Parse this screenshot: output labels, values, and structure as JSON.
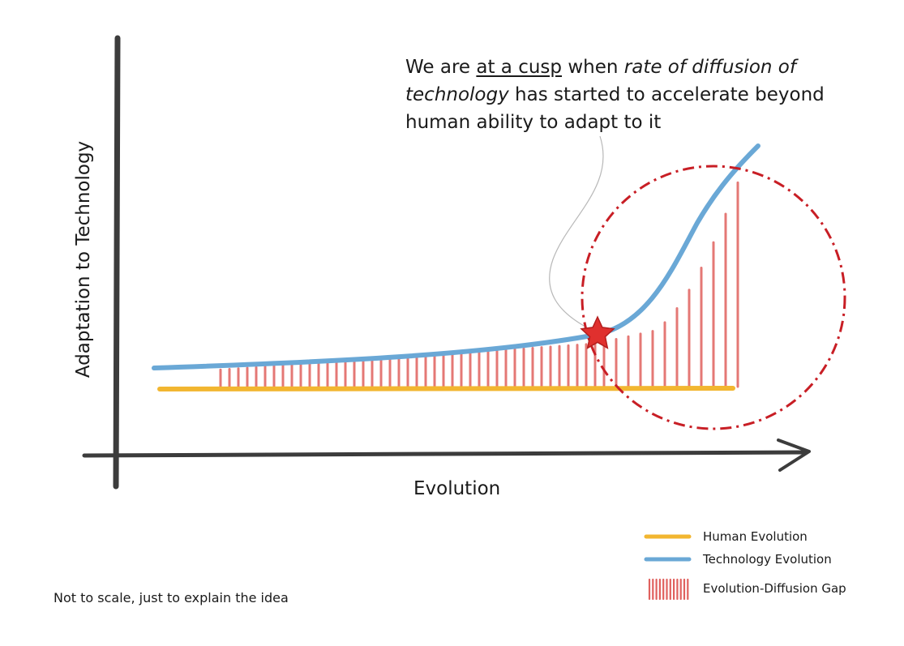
{
  "annotation": {
    "part1": "We are ",
    "part2": "at a cusp",
    "part3": " when ",
    "part4": "rate of diffusion of technology",
    "part5": " has started to accelerate beyond human ability to adapt to it"
  },
  "axes": {
    "y_label": "Adaptation to Technology",
    "x_label": "Evolution"
  },
  "note": "Not to scale, just to explain the idea",
  "legend": {
    "human": "Human Evolution",
    "technology": "Technology Evolution",
    "gap": "Evolution-Diffusion Gap"
  },
  "colors": {
    "human": "#f2b630",
    "technology": "#6aa8d6",
    "gap": "#e0615e",
    "circle": "#c81e25",
    "star": "#e0302e",
    "axis": "#3c3c3c"
  },
  "icons": {
    "cusp_marker": "star-icon",
    "x_axis_head": "arrow-right-icon"
  }
}
